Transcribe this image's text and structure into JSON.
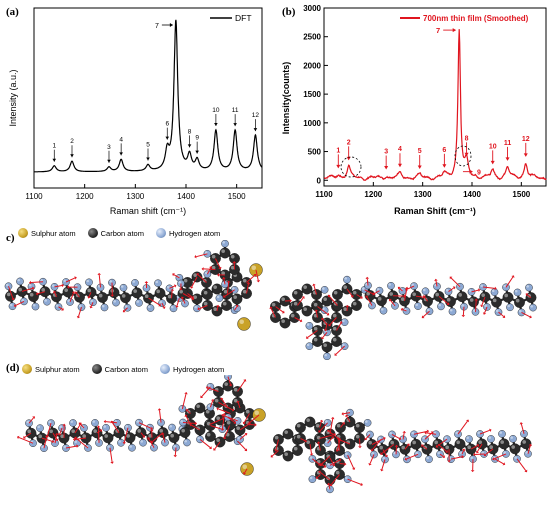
{
  "panels": {
    "a": {
      "letter": "(a)"
    },
    "b": {
      "letter": "(b)"
    },
    "c": {
      "letter": "c)"
    },
    "d": {
      "letter": "(d)"
    }
  },
  "legend_atoms": {
    "sulphur": "Sulphur atom",
    "carbon": "Carbon atom",
    "hydrogen": "Hydrogen atom"
  },
  "atom_colors": {
    "sulphur": "#c9a227",
    "carbon": "#2b2b2b",
    "hydrogen": "#8da9d4",
    "arrow": "#e0151f",
    "spectrum_b": "#e0151f"
  },
  "chart_data": [
    {
      "type": "line",
      "xlabel": "Raman shift (cm⁻¹)",
      "ylabel": "Intensity (a.u.)",
      "xlim": [
        1100,
        1550
      ],
      "xticks": [
        1100,
        1200,
        1300,
        1400,
        1500
      ],
      "legend": "DFT",
      "legend_position": "top-right",
      "series": [
        {
          "name": "DFT",
          "color": "#000000",
          "peaks": [
            {
              "label": "1",
              "x": 1140,
              "y": 0.04
            },
            {
              "label": "2",
              "x": 1175,
              "y": 0.07
            },
            {
              "label": "3",
              "x": 1248,
              "y": 0.03
            },
            {
              "label": "4",
              "x": 1272,
              "y": 0.08
            },
            {
              "label": "5",
              "x": 1325,
              "y": 0.04
            },
            {
              "label": "6",
              "x": 1363,
              "y": 0.12
            },
            {
              "label": "7",
              "x": 1380,
              "y": 1.0
            },
            {
              "label": "8",
              "x": 1407,
              "y": 0.1
            },
            {
              "label": "9",
              "x": 1422,
              "y": 0.07
            },
            {
              "label": "10",
              "x": 1459,
              "y": 0.27
            },
            {
              "label": "11",
              "x": 1497,
              "y": 0.27
            },
            {
              "label": "12",
              "x": 1537,
              "y": 0.24
            }
          ]
        }
      ]
    },
    {
      "type": "line",
      "xlabel": "Raman Shift (cm⁻¹)",
      "ylabel": "Intensity(counts)",
      "xlim": [
        1100,
        1550
      ],
      "ylim": [
        -100,
        3000
      ],
      "xticks": [
        1100,
        1200,
        1300,
        1400,
        1500
      ],
      "yticks": [
        0,
        500,
        1000,
        1500,
        2000,
        2500,
        3000
      ],
      "legend": "700nm thin film (Smoothed)",
      "legend_position": "top-right",
      "series": [
        {
          "name": "700nm thin film (Smoothed)",
          "color": "#e0151f",
          "peaks": [
            {
              "label": "1",
              "x": 1129,
              "y": 120
            },
            {
              "label": "2",
              "x": 1150,
              "y": 260
            },
            {
              "label": "3",
              "x": 1226,
              "y": 100
            },
            {
              "label": "4",
              "x": 1254,
              "y": 140
            },
            {
              "label": "5",
              "x": 1294,
              "y": 110
            },
            {
              "label": "6",
              "x": 1344,
              "y": 130
            },
            {
              "label": "7",
              "x": 1374,
              "y": 2650
            },
            {
              "label": "8",
              "x": 1389,
              "y": 330
            },
            {
              "label": "9",
              "x": 1406,
              "y": 80
            },
            {
              "label": "10",
              "x": 1442,
              "y": 190
            },
            {
              "label": "11",
              "x": 1472,
              "y": 250
            },
            {
              "label": "12",
              "x": 1509,
              "y": 320
            }
          ]
        }
      ]
    }
  ]
}
